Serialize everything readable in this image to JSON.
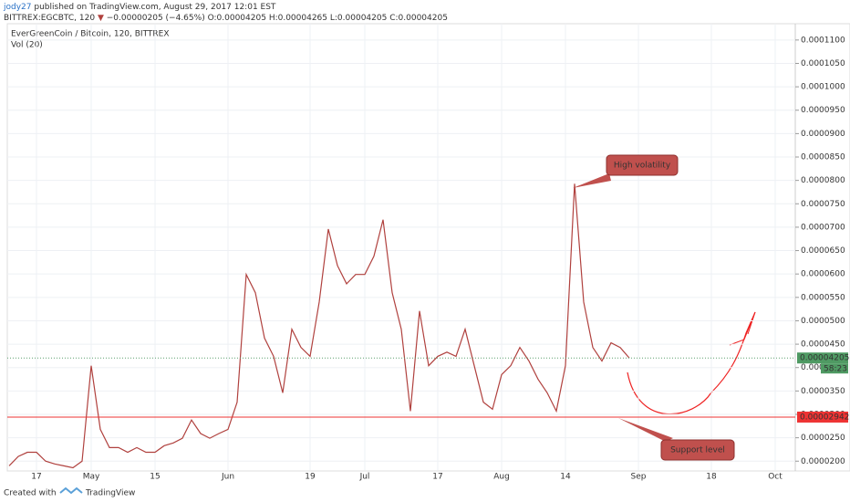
{
  "header": {
    "user": "jody27",
    "published": "published on TradingView.com, August 29, 2017 12:01 EST",
    "symbol": "BITTREX:EGCBTC, 120",
    "change": "−0.00000205 (−4.65%)",
    "open": "O:0.00004205",
    "high": "H:0.00004265",
    "low": "L:0.00004205",
    "close": "C:0.00004205"
  },
  "chart_data": {
    "type": "line",
    "title": "EverGreenCoin / Bitcoin, 120, BITTREX",
    "volume_label": "Vol (20)",
    "categories": [
      null,
      null,
      null,
      "17",
      null,
      null,
      null,
      null,
      null,
      "May",
      null,
      null,
      null,
      null,
      null,
      null,
      "15",
      null,
      null,
      null,
      null,
      null,
      null,
      null,
      "Jun",
      null,
      null,
      null,
      null,
      null,
      null,
      null,
      null,
      "19",
      null,
      null,
      null,
      null,
      null,
      "Jul",
      null,
      null,
      null,
      null,
      null,
      null,
      null,
      "17",
      null,
      null,
      null,
      null,
      null,
      null,
      "Aug",
      null,
      null,
      null,
      null,
      null,
      null,
      "14",
      null,
      null,
      null,
      null,
      null,
      null,
      null,
      "Sep",
      null,
      null,
      null,
      null,
      null,
      null,
      null,
      "18",
      null,
      null,
      null,
      null,
      null,
      null,
      "Oct",
      null,
      null
    ],
    "values": [
      1.9e-05,
      2.1e-05,
      2.19e-05,
      2.19e-05,
      2e-05,
      1.94e-05,
      1.9e-05,
      1.86e-05,
      2e-05,
      4.04e-05,
      2.68e-05,
      2.29e-05,
      2.29e-05,
      2.19e-05,
      2.29e-05,
      2.19e-05,
      2.19e-05,
      2.33e-05,
      2.39e-05,
      2.49e-05,
      2.88e-05,
      2.59e-05,
      2.49e-05,
      2.59e-05,
      2.68e-05,
      3.26e-05,
      5.99e-05,
      5.6e-05,
      4.63e-05,
      4.24e-05,
      3.46e-05,
      4.82e-05,
      4.43e-05,
      4.24e-05,
      5.4e-05,
      6.96e-05,
      6.18e-05,
      5.79e-05,
      5.99e-05,
      5.99e-05,
      6.38e-05,
      7.16e-05,
      5.6e-05,
      4.82e-05,
      3.07e-05,
      5.21e-05,
      4.04e-05,
      4.24e-05,
      4.33e-05,
      4.24e-05,
      4.82e-05,
      4.04e-05,
      3.26e-05,
      3.11e-05,
      3.85e-05,
      4.04e-05,
      4.43e-05,
      4.14e-05,
      3.75e-05,
      3.46e-05,
      3.07e-05,
      4.04e-05,
      7.93e-05,
      5.4e-05,
      4.43e-05,
      4.14e-05,
      4.53e-05,
      4.43e-05,
      4.205e-05,
      null,
      null,
      null,
      null,
      null,
      null,
      null,
      null,
      null,
      null,
      null,
      null,
      null,
      null,
      null,
      null,
      null,
      null
    ],
    "color": "#b0413e",
    "ylim": [
      1.81e-05,
      0.0001127
    ],
    "yticks": [
      {
        "value": 2e-05,
        "label": "0.0000200"
      },
      {
        "value": 2.5e-05,
        "label": "0.0000250"
      },
      {
        "value": 3e-05,
        "label": "0.0000300"
      },
      {
        "value": 3.5e-05,
        "label": "0.0000350"
      },
      {
        "value": 4e-05,
        "label": "0.0000400"
      },
      {
        "value": 4.5e-05,
        "label": "0.0000450"
      },
      {
        "value": 5e-05,
        "label": "0.0000500"
      },
      {
        "value": 5.5e-05,
        "label": "0.0000550"
      },
      {
        "value": 6e-05,
        "label": "0.0000600"
      },
      {
        "value": 6.5e-05,
        "label": "0.0000650"
      },
      {
        "value": 7e-05,
        "label": "0.0000700"
      },
      {
        "value": 7.5e-05,
        "label": "0.0000750"
      },
      {
        "value": 8e-05,
        "label": "0.0000800"
      },
      {
        "value": 8.5e-05,
        "label": "0.0000850"
      },
      {
        "value": 9e-05,
        "label": "0.0000900"
      },
      {
        "value": 9.5e-05,
        "label": "0.0000950"
      },
      {
        "value": 0.0001,
        "label": "0.0001000"
      },
      {
        "value": 0.000105,
        "label": "0.0001050"
      },
      {
        "value": 0.00011,
        "label": "0.0001100"
      }
    ],
    "grid": true,
    "support_level": 2.942e-05,
    "last_price": 4.205e-05,
    "countdown": "58:23",
    "annotations": [
      "High volatility",
      "Support level"
    ]
  },
  "footer": {
    "created": "Created with",
    "brand": "TradingView"
  }
}
